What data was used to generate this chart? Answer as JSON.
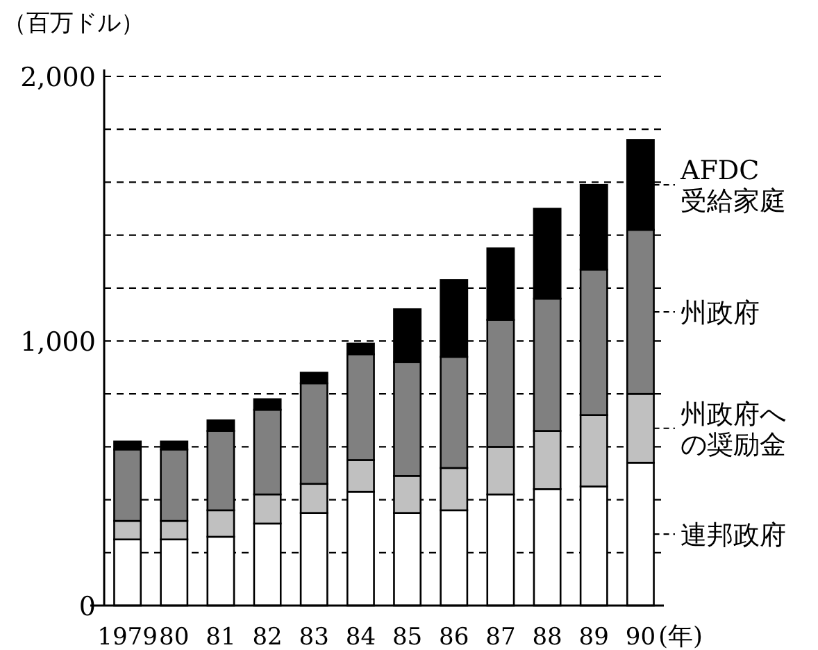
{
  "chart_data": {
    "type": "bar",
    "stacked": true,
    "ylabel": "（百万ドル）",
    "xlabel": "(年)",
    "categories": [
      "1979",
      "80",
      "81",
      "82",
      "83",
      "84",
      "85",
      "86",
      "87",
      "88",
      "89",
      "90"
    ],
    "series": [
      {
        "name": "連邦政府",
        "color": "#ffffff",
        "values": [
          250,
          250,
          260,
          310,
          350,
          430,
          350,
          360,
          420,
          440,
          450,
          540
        ]
      },
      {
        "name": "州政府への奨励金",
        "color": "#c0c0c0",
        "values": [
          70,
          70,
          100,
          110,
          110,
          120,
          140,
          160,
          180,
          220,
          270,
          260
        ]
      },
      {
        "name": "州政府",
        "color": "#808080",
        "values": [
          270,
          270,
          300,
          320,
          380,
          400,
          430,
          420,
          480,
          500,
          550,
          620
        ]
      },
      {
        "name": "AFDC受給家庭",
        "color": "#000000",
        "values": [
          30,
          30,
          40,
          40,
          40,
          40,
          200,
          290,
          270,
          340,
          320,
          340
        ]
      }
    ],
    "ylim": [
      0,
      2000
    ],
    "yticks": [
      {
        "value": 0,
        "label": "0"
      },
      {
        "value": 200,
        "label": null
      },
      {
        "value": 400,
        "label": null
      },
      {
        "value": 600,
        "label": null
      },
      {
        "value": 800,
        "label": null
      },
      {
        "value": 1000,
        "label": "1,000"
      },
      {
        "value": 1200,
        "label": null
      },
      {
        "value": 1400,
        "label": null
      },
      {
        "value": 1600,
        "label": null
      },
      {
        "value": 1800,
        "label": null
      },
      {
        "value": 2000,
        "label": "2,000"
      }
    ],
    "grid": "y",
    "legend": "right"
  }
}
